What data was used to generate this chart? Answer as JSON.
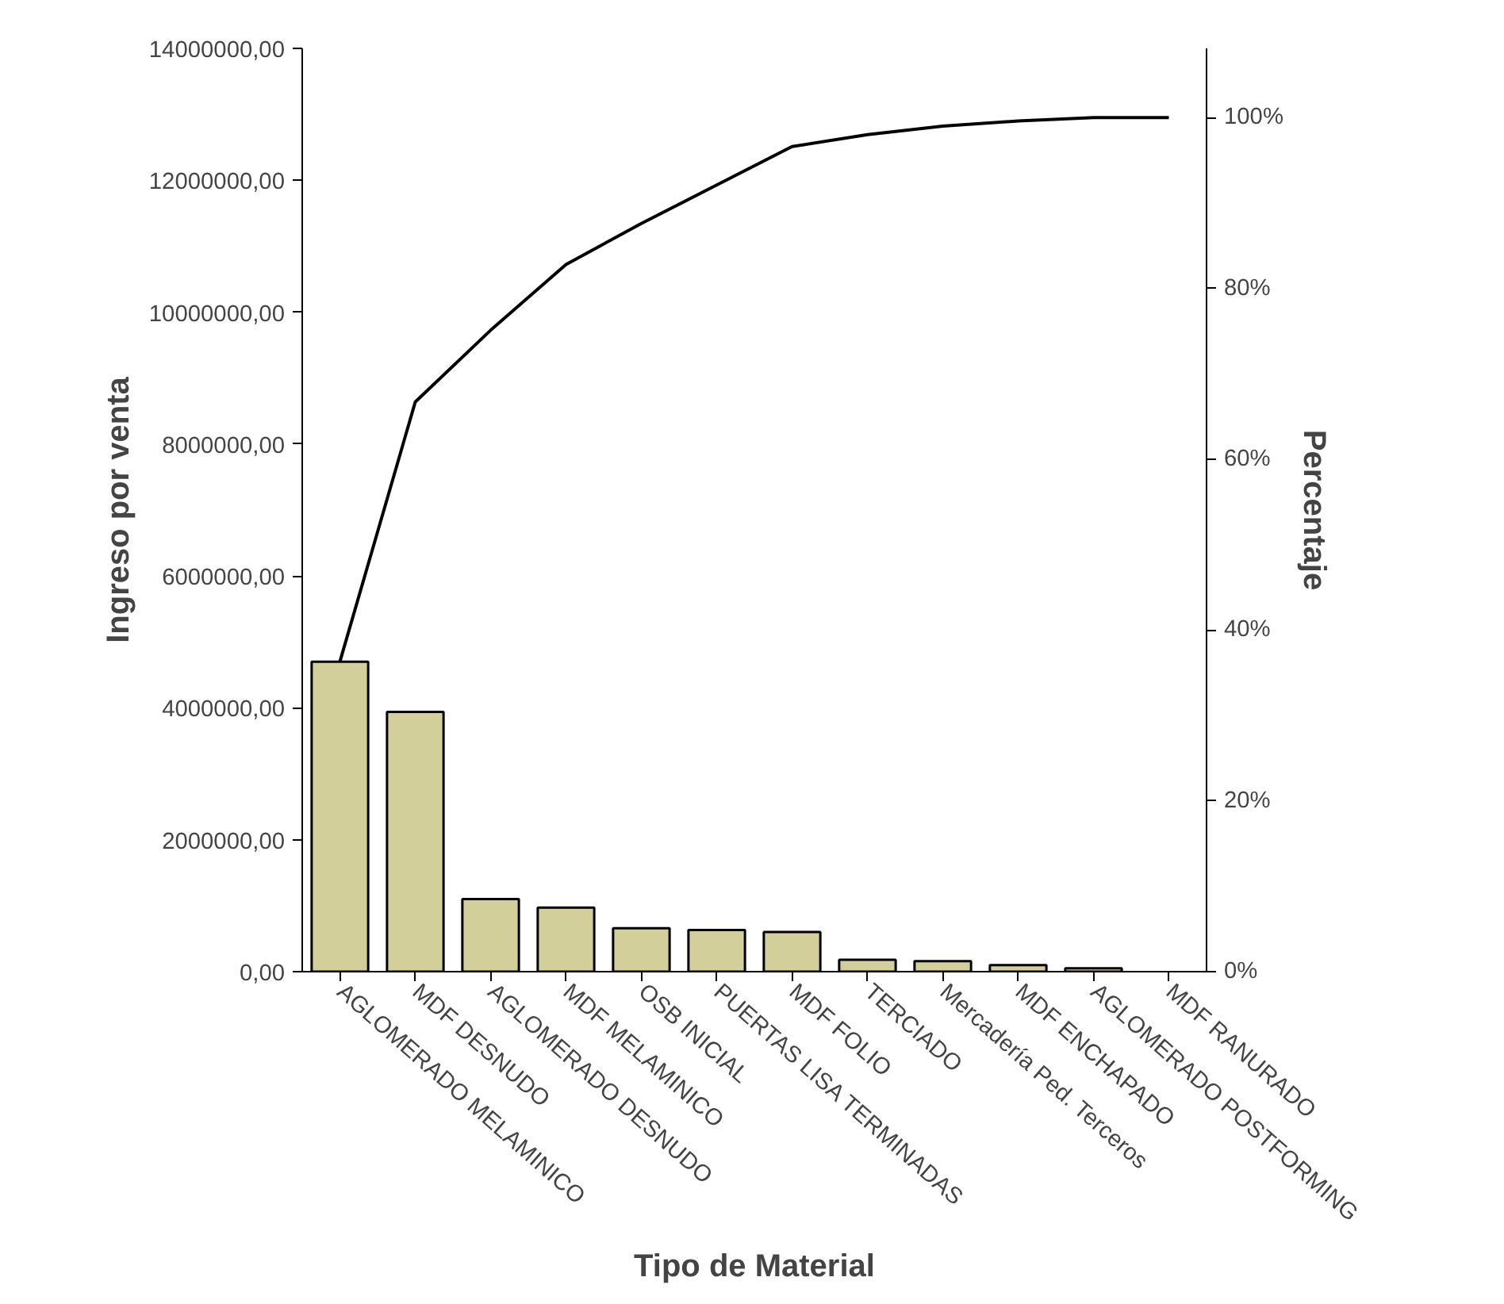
{
  "chart_data": {
    "type": "bar",
    "xlabel": "Tipo de Material",
    "ylabel": "Ingreso por venta",
    "y2label": "Percentaje",
    "categories": [
      "AGLOMERADO MELAMINICO",
      "MDF DESNUDO",
      "AGLOMERADO DESNUDO",
      "MDF MELAMINICO",
      "OSB INICIAL",
      "PUERTAS LISA TERMINADAS",
      "MDF FOLIO",
      "TERCIADO",
      "Mercadería Ped. Terceros",
      "MDF ENCHAPADO",
      "AGLOMERADO POSTFORMING",
      "MDF RANURADO"
    ],
    "series": [
      {
        "color": "#d3cf9b",
        "values": [
          4700000,
          3940000,
          1100000,
          970000,
          660000,
          630000,
          600000,
          180000,
          160000,
          100000,
          50000,
          null
        ]
      },
      {
        "type": "line",
        "axis": "y2",
        "color": "#000000",
        "values": [
          36.3,
          66.7,
          75.1,
          82.8,
          87.6,
          92.1,
          96.6,
          98.0,
          99.0,
          99.6,
          100,
          100
        ]
      }
    ],
    "ylim": [
      0,
      14000000
    ],
    "yticks": [
      {
        "value": 0,
        "label": "0,00"
      },
      {
        "value": 2000000,
        "label": "2000000,00"
      },
      {
        "value": 4000000,
        "label": "4000000,00"
      },
      {
        "value": 6000000,
        "label": "6000000,00"
      },
      {
        "value": 8000000,
        "label": "8000000,00"
      },
      {
        "value": 10000000,
        "label": "10000000,00"
      },
      {
        "value": 12000000,
        "label": "12000000,00"
      },
      {
        "value": 14000000,
        "label": "14000000,00"
      }
    ],
    "y2lim": [
      0,
      108.1
    ],
    "y2ticks": [
      {
        "value": 0,
        "label": "0%"
      },
      {
        "value": 20,
        "label": "20%"
      },
      {
        "value": 40,
        "label": "40%"
      },
      {
        "value": 60,
        "label": "60%"
      },
      {
        "value": 80,
        "label": "80%"
      },
      {
        "value": 100,
        "label": "100%"
      }
    ],
    "grid": false,
    "marker": "none",
    "line_style": "solid"
  }
}
